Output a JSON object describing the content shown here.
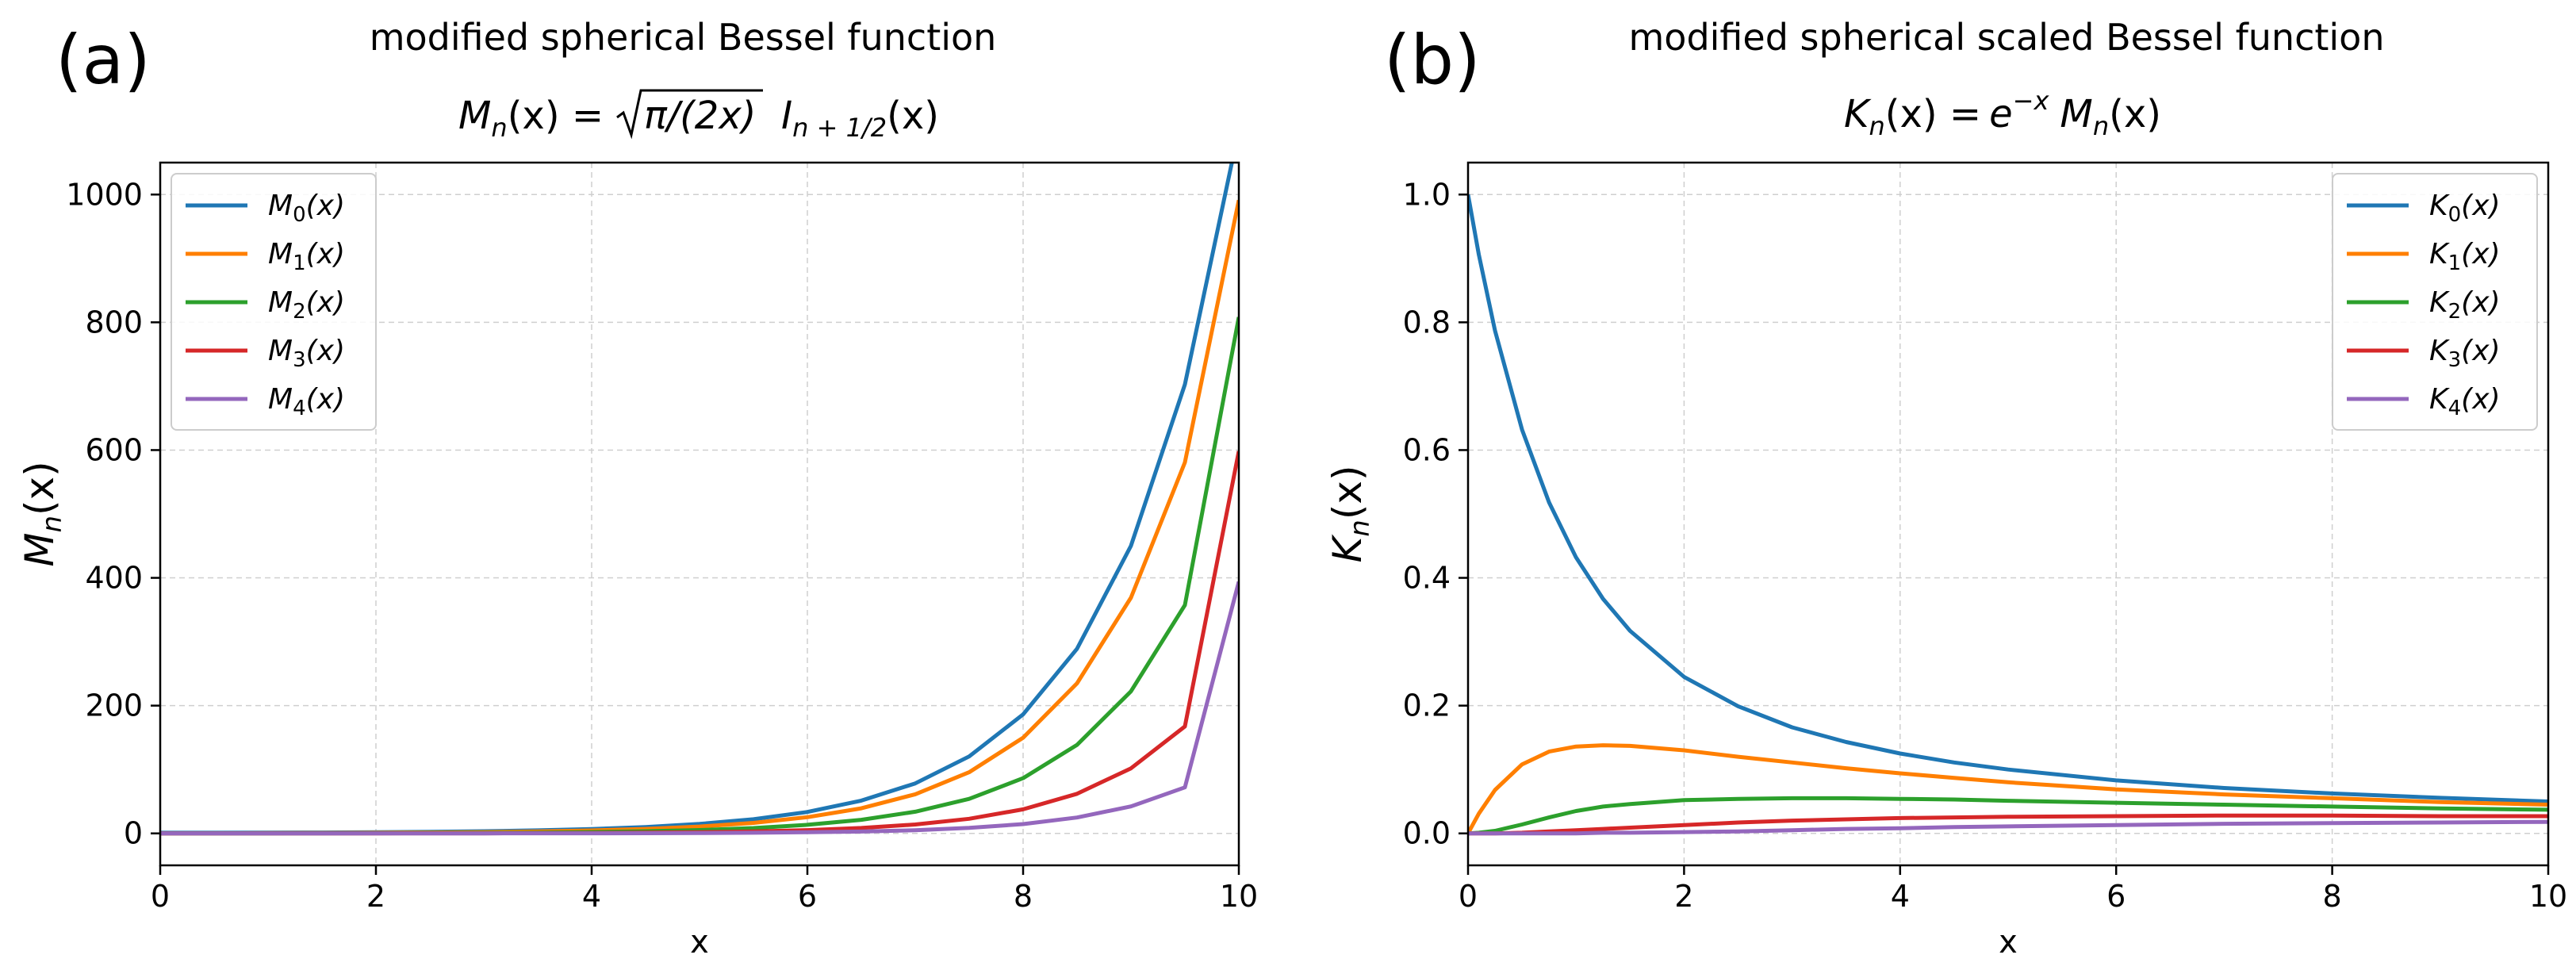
{
  "panels": [
    {
      "label": "(a)",
      "title": "modified spherical Bessel function",
      "formula": {
        "lhs_main": "M",
        "lhs_sub": "n",
        "lhs_arg": "(x) =",
        "sqrt_content": "π/(2x)",
        "rhs_main": "I",
        "rhs_sub": "n + 1/2",
        "rhs_arg": "(x)"
      },
      "ylabel_main": "M",
      "ylabel_sub": "n",
      "ylabel_arg": "(x)",
      "legend": [
        {
          "main": "M",
          "sub": "0",
          "arg": "(x)"
        },
        {
          "main": "M",
          "sub": "1",
          "arg": "(x)"
        },
        {
          "main": "M",
          "sub": "2",
          "arg": "(x)"
        },
        {
          "main": "M",
          "sub": "3",
          "arg": "(x)"
        },
        {
          "main": "M",
          "sub": "4",
          "arg": "(x)"
        }
      ]
    },
    {
      "label": "(b)",
      "title": "modified spherical scaled Bessel function",
      "formula": {
        "lhs_main": "K",
        "lhs_sub": "n",
        "lhs_arg": "(x) =",
        "exp_base": "e",
        "exp_sup": "−x",
        "rhs_main": "M",
        "rhs_sub": "n",
        "rhs_arg": "(x)"
      },
      "ylabel_main": "K",
      "ylabel_sub": "n",
      "ylabel_arg": "(x)",
      "legend": [
        {
          "main": "K",
          "sub": "0",
          "arg": "(x)"
        },
        {
          "main": "K",
          "sub": "1",
          "arg": "(x)"
        },
        {
          "main": "K",
          "sub": "2",
          "arg": "(x)"
        },
        {
          "main": "K",
          "sub": "3",
          "arg": "(x)"
        },
        {
          "main": "K",
          "sub": "4",
          "arg": "(x)"
        }
      ]
    }
  ],
  "chart_data": [
    {
      "type": "line",
      "title": "modified spherical Bessel function",
      "xlabel": "x",
      "ylabel": "M_n(x)",
      "xlim": [
        0,
        10
      ],
      "ylim": [
        -50,
        1050
      ],
      "xticks": [
        0,
        2,
        4,
        6,
        8,
        10
      ],
      "yticks": [
        0,
        200,
        400,
        600,
        800,
        1000
      ],
      "grid": true,
      "legend_position": "upper-left",
      "x": [
        0,
        0.5,
        1,
        1.5,
        2,
        2.5,
        3,
        3.5,
        4,
        4.5,
        5,
        5.5,
        6,
        6.5,
        7,
        7.5,
        8,
        8.5,
        9,
        9.5,
        10
      ],
      "series": [
        {
          "name": "M_0(x)",
          "color": "#1f77b4",
          "values": [
            1.0,
            1.04,
            1.18,
            1.42,
            1.81,
            2.44,
            3.34,
            4.73,
            6.82,
            10.0,
            14.8,
            22.1,
            33.6,
            51.3,
            78.3,
            120.5,
            186.3,
            289.1,
            450.2,
            702.7,
            1101.3
          ]
        },
        {
          "name": "M_1(x)",
          "color": "#ff7f00",
          "values": [
            0,
            0.17,
            0.37,
            0.6,
            0.91,
            1.36,
            2.03,
            3.04,
            4.61,
            6.95,
            10.7,
            16.4,
            25.3,
            39.3,
            61.3,
            95.7,
            149.8,
            234.9,
            369.0,
            580.7,
            991.1
          ]
        },
        {
          "name": "M_2(x)",
          "color": "#2ca02c",
          "values": [
            0,
            0.02,
            0.07,
            0.16,
            0.29,
            0.49,
            0.81,
            1.3,
            2.1,
            3.33,
            5.26,
            8.35,
            13.4,
            21.3,
            33.9,
            54.1,
            86.5,
            138.6,
            222.4,
            357.4,
            808.2
          ]
        },
        {
          "name": "M_3(x)",
          "color": "#d62728",
          "values": [
            0,
            0.0,
            0.01,
            0.03,
            0.06,
            0.12,
            0.22,
            0.39,
            0.68,
            1.13,
            1.88,
            3.1,
            5.13,
            8.45,
            13.9,
            22.9,
            37.7,
            62.0,
            101.9,
            167.4,
            598.2
          ]
        },
        {
          "name": "M_4(x)",
          "color": "#9467bd",
          "values": [
            0,
            0.0,
            0.0,
            0.0,
            0.01,
            0.02,
            0.05,
            0.1,
            0.18,
            0.33,
            0.58,
            1.0,
            1.72,
            2.94,
            5.03,
            8.58,
            14.6,
            24.9,
            42.3,
            72.0,
            394.0
          ]
        }
      ]
    },
    {
      "type": "line",
      "title": "modified spherical scaled Bessel function",
      "xlabel": "x",
      "ylabel": "K_n(x)",
      "xlim": [
        0,
        10
      ],
      "ylim": [
        -0.05,
        1.05
      ],
      "xticks": [
        0,
        2,
        4,
        6,
        8,
        10
      ],
      "yticks": [
        0.0,
        0.2,
        0.4,
        0.6,
        0.8,
        1.0
      ],
      "grid": true,
      "legend_position": "upper-right",
      "x": [
        0,
        0.1,
        0.25,
        0.5,
        0.75,
        1,
        1.25,
        1.5,
        2,
        2.5,
        3,
        3.5,
        4,
        4.5,
        5,
        6,
        7,
        8,
        9,
        10
      ],
      "series": [
        {
          "name": "K_0(x)",
          "color": "#1f77b4",
          "values": [
            1.0,
            0.906,
            0.787,
            0.632,
            0.518,
            0.432,
            0.367,
            0.317,
            0.245,
            0.199,
            0.166,
            0.143,
            0.125,
            0.111,
            0.1,
            0.083,
            0.071,
            0.0625,
            0.0556,
            0.05
          ]
        },
        {
          "name": "K_1(x)",
          "color": "#ff7f00",
          "values": [
            0.0,
            0.031,
            0.068,
            0.108,
            0.128,
            0.136,
            0.138,
            0.137,
            0.13,
            0.12,
            0.111,
            0.102,
            0.094,
            0.087,
            0.08,
            0.069,
            0.061,
            0.055,
            0.049,
            0.045
          ]
        },
        {
          "name": "K_2(x)",
          "color": "#2ca02c",
          "values": [
            0.0,
            0.001,
            0.004,
            0.014,
            0.025,
            0.035,
            0.042,
            0.046,
            0.052,
            0.054,
            0.055,
            0.055,
            0.054,
            0.053,
            0.051,
            0.048,
            0.045,
            0.042,
            0.039,
            0.037
          ]
        },
        {
          "name": "K_3(x)",
          "color": "#d62728",
          "values": [
            0.0,
            0.0,
            0.0,
            0.001,
            0.003,
            0.005,
            0.007,
            0.009,
            0.013,
            0.017,
            0.02,
            0.022,
            0.024,
            0.025,
            0.026,
            0.027,
            0.028,
            0.028,
            0.027,
            0.027
          ]
        },
        {
          "name": "K_4(x)",
          "color": "#9467bd",
          "values": [
            0.0,
            0.0,
            0.0,
            0.0,
            0.0,
            0.0,
            0.001,
            0.001,
            0.002,
            0.003,
            0.005,
            0.007,
            0.008,
            0.01,
            0.011,
            0.013,
            0.015,
            0.016,
            0.017,
            0.018
          ]
        }
      ]
    }
  ]
}
